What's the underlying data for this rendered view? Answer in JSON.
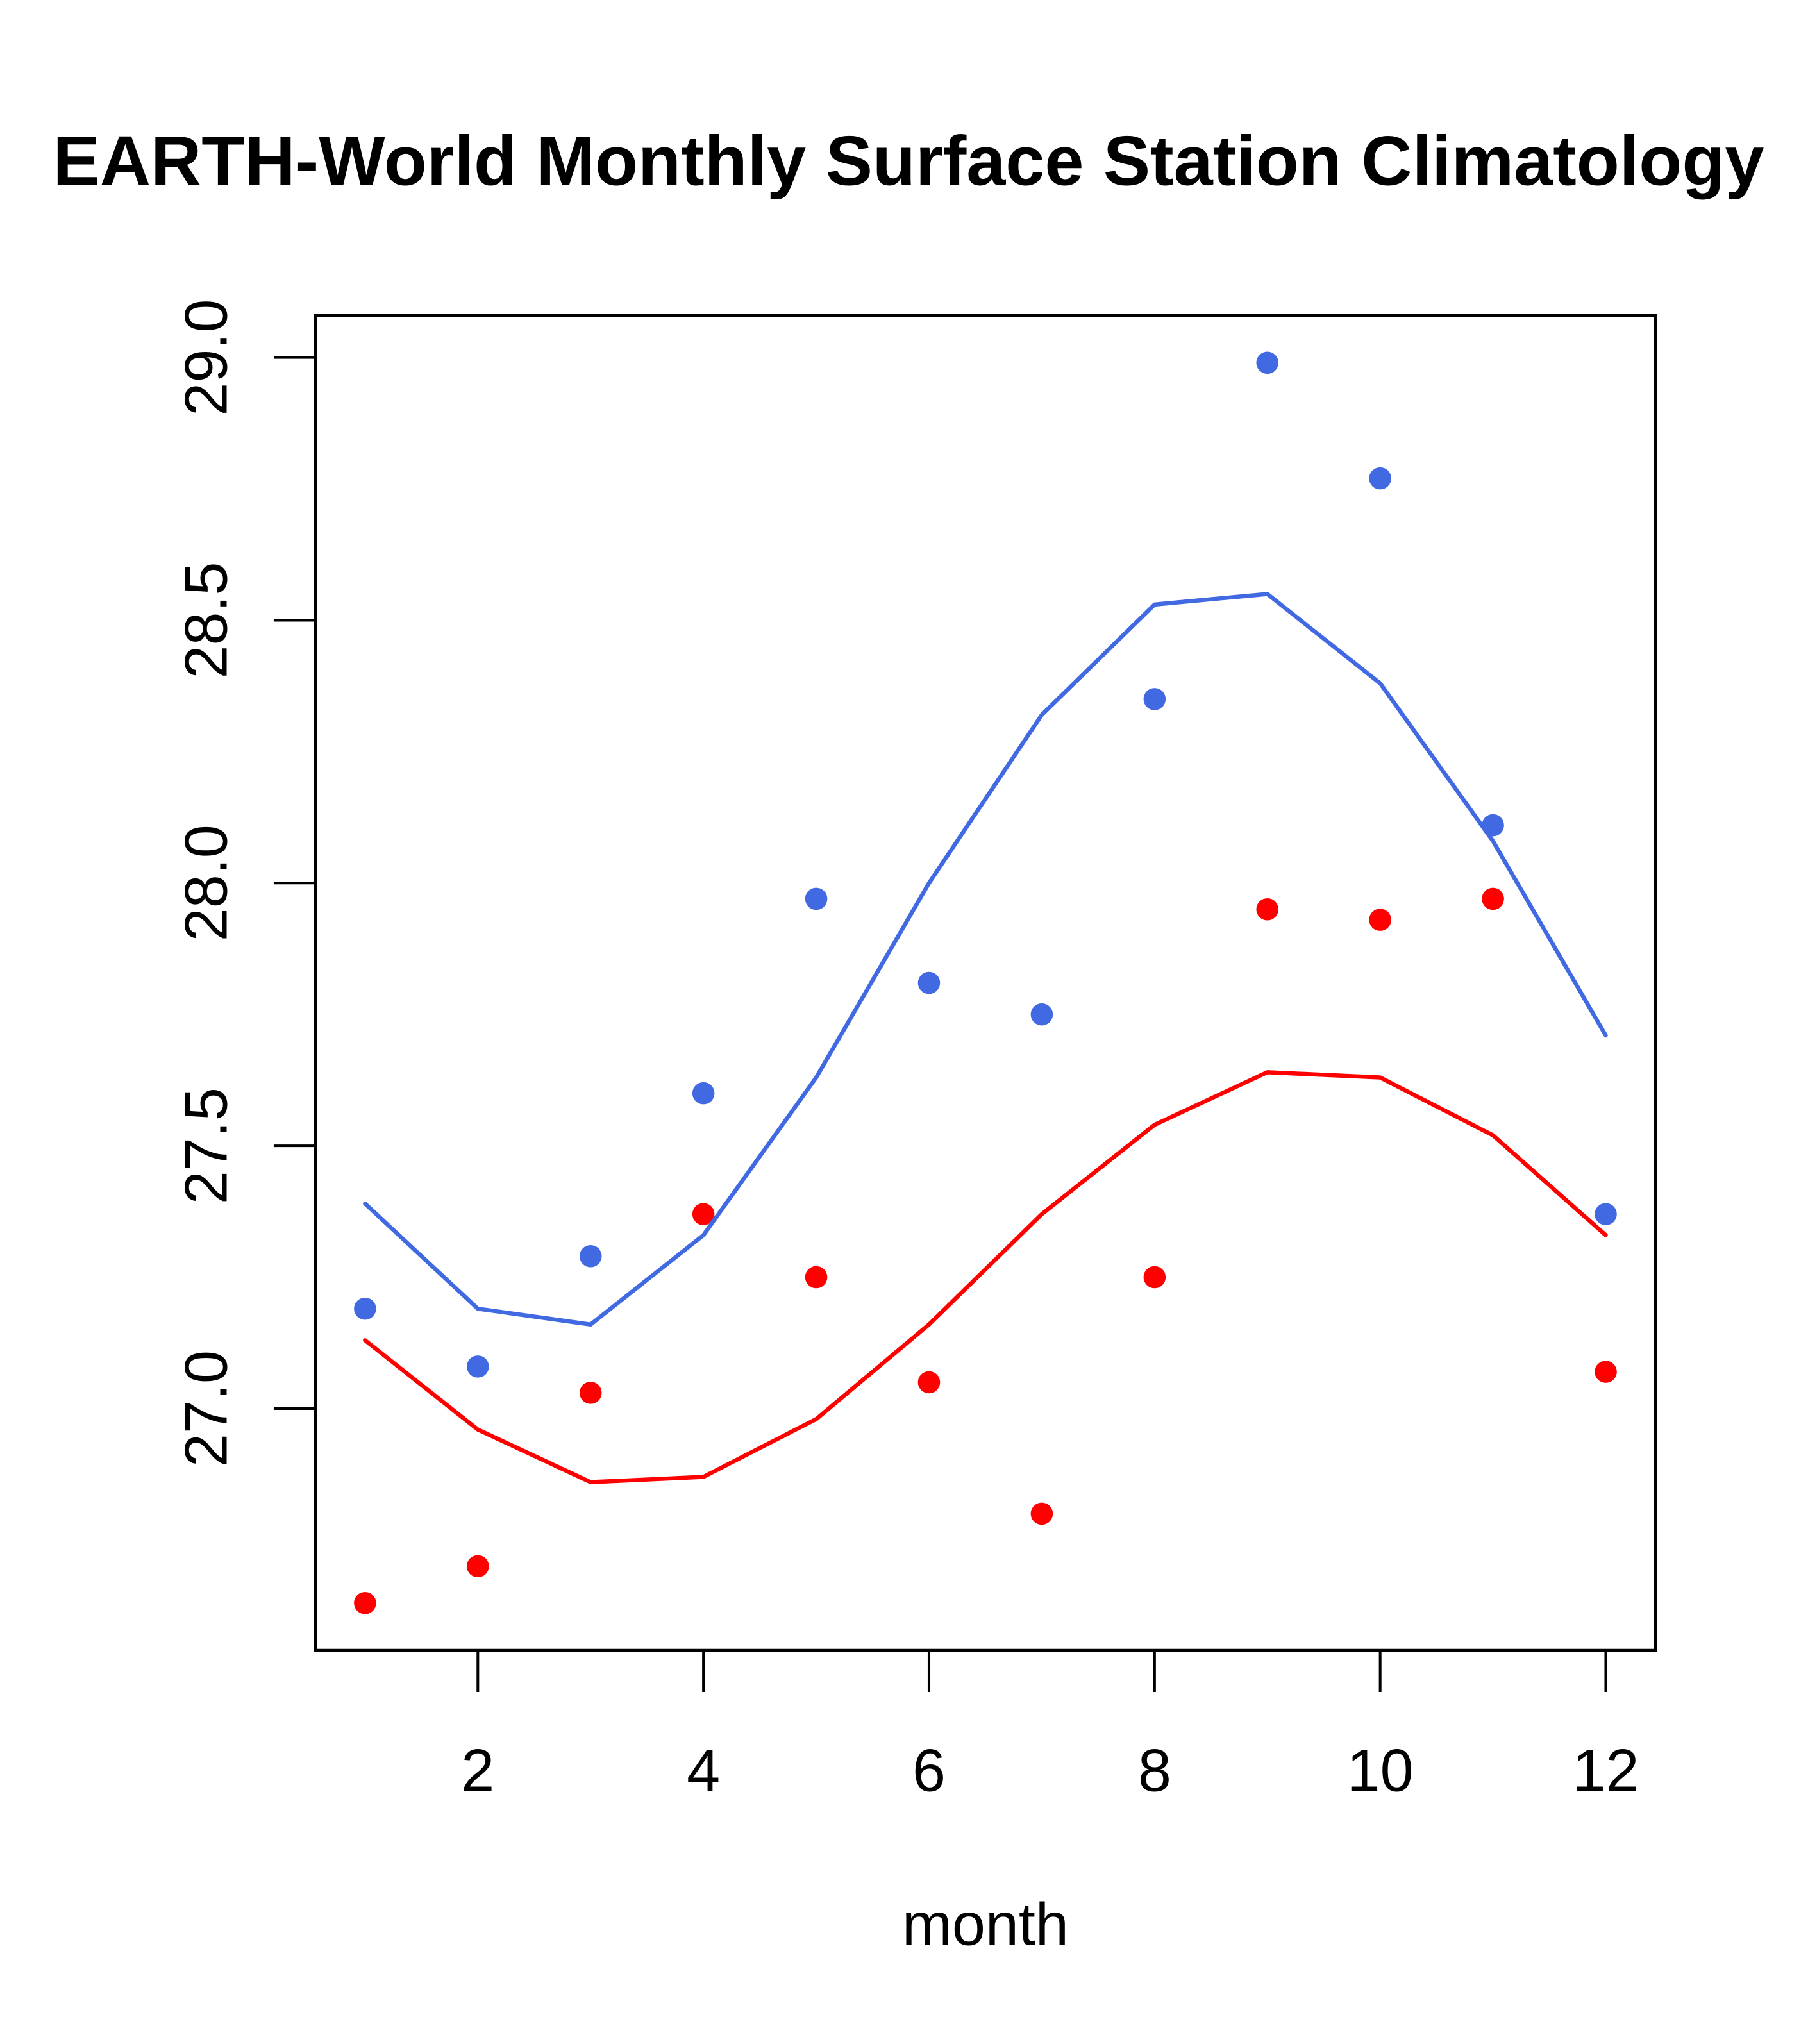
{
  "chart_data": {
    "type": "scatter",
    "title": "EARTH-World Monthly Surface Station Climatology",
    "xlabel": "month",
    "ylabel": "",
    "xlim": [
      0.56,
      12.44
    ],
    "ylim": [
      26.54,
      29.08
    ],
    "x_ticks": [
      2,
      4,
      6,
      8,
      10,
      12
    ],
    "x_tick_labels": [
      "2",
      "4",
      "6",
      "8",
      "10",
      "12"
    ],
    "y_ticks": [
      27.0,
      27.5,
      28.0,
      28.5,
      29.0
    ],
    "y_tick_labels": [
      "27.0",
      "27.5",
      "28.0",
      "28.5",
      "29.0"
    ],
    "grid": false,
    "legend": null,
    "x": [
      1,
      2,
      3,
      4,
      5,
      6,
      7,
      8,
      9,
      10,
      11,
      12
    ],
    "series": [
      {
        "name": "blue points",
        "kind": "points",
        "color": "#4169E1",
        "values": [
          27.19,
          27.08,
          27.29,
          27.6,
          27.97,
          27.81,
          27.75,
          28.35,
          28.99,
          28.77,
          28.11,
          27.37
        ]
      },
      {
        "name": "red points",
        "kind": "points",
        "color": "#FF0000",
        "values": [
          26.63,
          26.7,
          27.03,
          27.37,
          27.25,
          27.05,
          26.8,
          27.25,
          27.95,
          27.93,
          27.97,
          27.07
        ]
      },
      {
        "name": "blue line",
        "kind": "line",
        "color": "#4169E1",
        "values": [
          27.39,
          27.19,
          27.16,
          27.33,
          27.63,
          28.0,
          28.32,
          28.53,
          28.55,
          28.38,
          28.08,
          27.71
        ]
      },
      {
        "name": "red line",
        "kind": "line",
        "color": "#FF0000",
        "values": [
          27.13,
          26.96,
          26.86,
          26.87,
          26.98,
          27.16,
          27.37,
          27.54,
          27.64,
          27.63,
          27.52,
          27.33
        ]
      }
    ]
  }
}
